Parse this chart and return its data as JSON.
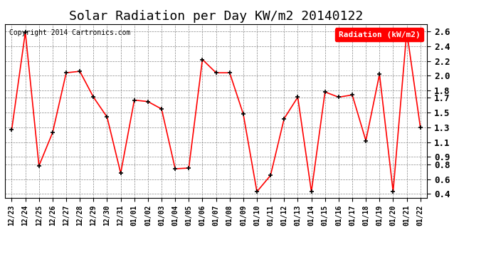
{
  "title": "Solar Radiation per Day KW/m2 20140122",
  "copyright_text": "Copyright 2014 Cartronics.com",
  "legend_label": "Radiation (kW/m2)",
  "x_labels": [
    "12/23",
    "12/24",
    "12/25",
    "12/26",
    "12/27",
    "12/28",
    "12/29",
    "12/30",
    "12/31",
    "01/01",
    "01/02",
    "01/03",
    "01/04",
    "01/05",
    "01/06",
    "01/07",
    "01/08",
    "01/09",
    "01/10",
    "01/11",
    "01/12",
    "01/13",
    "01/14",
    "01/15",
    "01/16",
    "01/17",
    "01/18",
    "01/19",
    "01/20",
    "01/21",
    "01/22"
  ],
  "y_values": [
    1.27,
    2.59,
    0.78,
    1.23,
    2.04,
    2.06,
    1.71,
    1.44,
    0.68,
    1.67,
    1.65,
    1.55,
    0.74,
    0.75,
    2.22,
    2.04,
    2.04,
    1.48,
    0.43,
    0.65,
    1.42,
    1.71,
    0.43,
    1.78,
    1.71,
    1.74,
    1.12,
    2.02,
    0.43,
    2.6,
    1.3
  ],
  "line_color": "#ff0000",
  "marker_color": "#000000",
  "background_color": "#ffffff",
  "plot_bg_color": "#ffffff",
  "grid_color": "#888888",
  "ylim": [
    0.35,
    2.7
  ],
  "yticks": [
    0.4,
    0.6,
    0.8,
    0.9,
    1.1,
    1.3,
    1.5,
    1.7,
    1.8,
    2.0,
    2.2,
    2.4,
    2.6
  ],
  "title_fontsize": 13,
  "legend_bg_color": "#ff0000",
  "legend_text_color": "#ffffff"
}
